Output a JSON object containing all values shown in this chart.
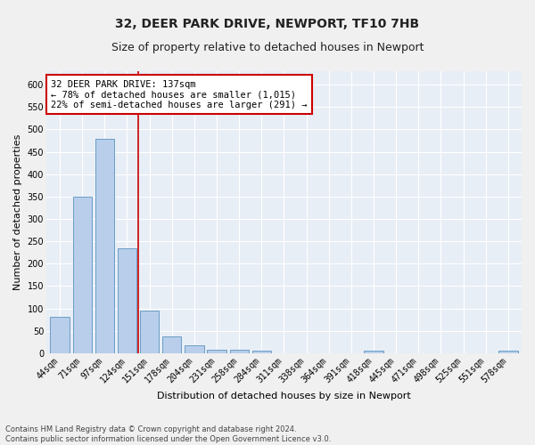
{
  "title1": "32, DEER PARK DRIVE, NEWPORT, TF10 7HB",
  "title2": "Size of property relative to detached houses in Newport",
  "xlabel": "Distribution of detached houses by size in Newport",
  "ylabel": "Number of detached properties",
  "categories": [
    "44sqm",
    "71sqm",
    "97sqm",
    "124sqm",
    "151sqm",
    "178sqm",
    "204sqm",
    "231sqm",
    "258sqm",
    "284sqm",
    "311sqm",
    "338sqm",
    "364sqm",
    "391sqm",
    "418sqm",
    "445sqm",
    "471sqm",
    "498sqm",
    "525sqm",
    "551sqm",
    "578sqm"
  ],
  "values": [
    82,
    350,
    478,
    234,
    95,
    37,
    17,
    8,
    8,
    5,
    0,
    0,
    0,
    0,
    5,
    0,
    0,
    0,
    0,
    0,
    5
  ],
  "bar_color": "#b8ceea",
  "bar_edge_color": "#6a9ec5",
  "bg_color": "#e8eef6",
  "grid_color": "#ffffff",
  "fig_bg_color": "#f0f0f0",
  "annotation_box_color": "#ffffff",
  "annotation_border_color": "#cc0000",
  "vline_color": "#cc0000",
  "annotation_line1": "32 DEER PARK DRIVE: 137sqm",
  "annotation_line2": "← 78% of detached houses are smaller (1,015)",
  "annotation_line3": "22% of semi-detached houses are larger (291) →",
  "ylim": [
    0,
    630
  ],
  "yticks": [
    0,
    50,
    100,
    150,
    200,
    250,
    300,
    350,
    400,
    450,
    500,
    550,
    600
  ],
  "footer1": "Contains HM Land Registry data © Crown copyright and database right 2024.",
  "footer2": "Contains public sector information licensed under the Open Government Licence v3.0.",
  "title_fontsize": 10,
  "subtitle_fontsize": 9,
  "tick_fontsize": 7,
  "label_fontsize": 8,
  "annotation_fontsize": 7.5,
  "footer_fontsize": 6
}
